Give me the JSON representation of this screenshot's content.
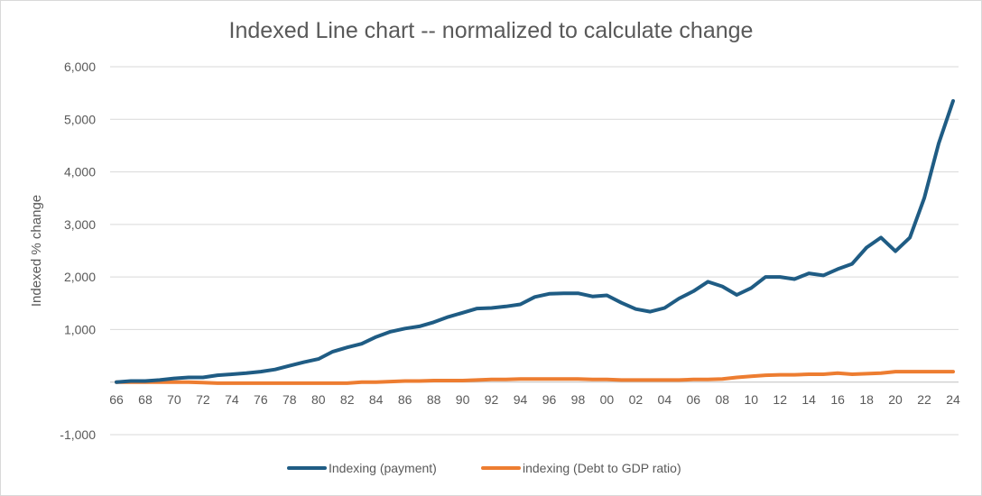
{
  "chart_data": {
    "type": "line",
    "title": "Indexed Line chart -- normalized to calculate change",
    "xlabel": "",
    "ylabel": "Indexed % change",
    "ylim": [
      -1000,
      6000
    ],
    "yticks": [
      6000,
      5000,
      4000,
      3000,
      2000,
      1000,
      0,
      -1000
    ],
    "ytick_labels": [
      "6,000",
      "5,000",
      "4,000",
      "3,000",
      "2,000",
      "1,000",
      "",
      "-1,000"
    ],
    "x": [
      66,
      67,
      68,
      69,
      70,
      71,
      72,
      73,
      74,
      75,
      76,
      77,
      78,
      79,
      80,
      81,
      82,
      83,
      84,
      85,
      86,
      87,
      88,
      89,
      90,
      91,
      92,
      93,
      94,
      95,
      96,
      97,
      98,
      99,
      0,
      1,
      2,
      3,
      4,
      5,
      6,
      7,
      8,
      9,
      10,
      11,
      12,
      13,
      14,
      15,
      16,
      17,
      18,
      19,
      20,
      21,
      22,
      23,
      24
    ],
    "xtick_labels": [
      "66",
      "68",
      "70",
      "72",
      "74",
      "76",
      "78",
      "80",
      "82",
      "84",
      "86",
      "88",
      "90",
      "92",
      "94",
      "96",
      "98",
      "00",
      "02",
      "04",
      "06",
      "08",
      "10",
      "12",
      "14",
      "16",
      "18",
      "20",
      "22",
      "24"
    ],
    "grid": "horizontal",
    "legend_position": "bottom",
    "colors": {
      "payment": "#1f5c84",
      "debt": "#ed7d31",
      "grid": "#d9d9d9"
    },
    "series": [
      {
        "name": "Indexing (payment)",
        "values": [
          0,
          20,
          20,
          40,
          70,
          90,
          90,
          130,
          150,
          170,
          200,
          240,
          310,
          380,
          440,
          580,
          660,
          730,
          860,
          960,
          1020,
          1060,
          1140,
          1240,
          1320,
          1400,
          1410,
          1440,
          1480,
          1620,
          1680,
          1690,
          1690,
          1630,
          1650,
          1510,
          1390,
          1340,
          1410,
          1590,
          1730,
          1910,
          1820,
          1660,
          1790,
          2000,
          2000,
          1960,
          2070,
          2030,
          2150,
          2250,
          2560,
          2750,
          2490,
          2750,
          3500,
          4540,
          5350
        ]
      },
      {
        "name": "indexing (Debt to GDP ratio)",
        "values": [
          0,
          0,
          0,
          0,
          0,
          0,
          -10,
          -20,
          -20,
          -20,
          -20,
          -20,
          -20,
          -20,
          -20,
          -20,
          -20,
          0,
          0,
          10,
          20,
          20,
          30,
          30,
          30,
          40,
          50,
          50,
          60,
          60,
          60,
          60,
          60,
          50,
          50,
          40,
          40,
          40,
          40,
          40,
          50,
          50,
          60,
          90,
          110,
          130,
          140,
          140,
          150,
          150,
          170,
          150,
          160,
          170,
          200,
          200,
          200,
          200,
          200
        ]
      }
    ]
  }
}
